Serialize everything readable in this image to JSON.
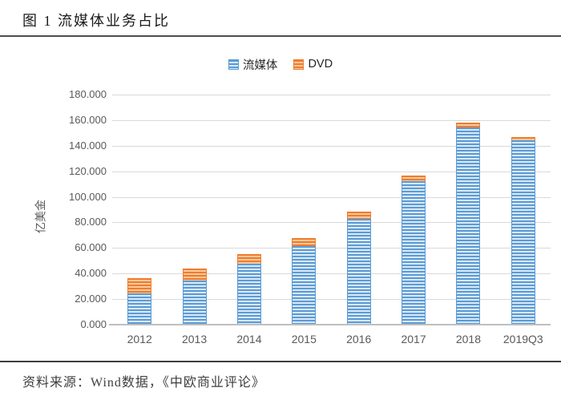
{
  "header": {
    "title": "图 1 流媒体业务占比"
  },
  "footer": {
    "source": "资料来源：Wind数据，《中欧商业评论》"
  },
  "chart_data": {
    "type": "bar",
    "stacked": true,
    "title": "图 1 流媒体业务占比",
    "ylabel": "亿美金",
    "xlabel": "",
    "ylim": [
      0,
      180
    ],
    "ytick_step": 20,
    "yticks": [
      "0.000",
      "20.000",
      "40.000",
      "60.000",
      "80.000",
      "100.000",
      "120.000",
      "140.000",
      "160.000",
      "180.000"
    ],
    "grid": true,
    "legend_position": "top-center",
    "categories": [
      "2012",
      "2013",
      "2014",
      "2015",
      "2016",
      "2017",
      "2018",
      "2019Q3"
    ],
    "series": [
      {
        "key": "streaming",
        "name": "流媒体",
        "color": "#5b9bd5",
        "color_light": "#d9e8f5",
        "values": [
          24.7,
          34.6,
          47.4,
          61.3,
          82.9,
          112.4,
          154.3,
          144.5
        ]
      },
      {
        "key": "dvd",
        "name": "DVD",
        "color": "#ed7d31",
        "color_light": "#f9c798",
        "values": [
          11.4,
          9.1,
          7.7,
          6.5,
          5.4,
          4.5,
          3.7,
          2.3
        ]
      }
    ]
  }
}
